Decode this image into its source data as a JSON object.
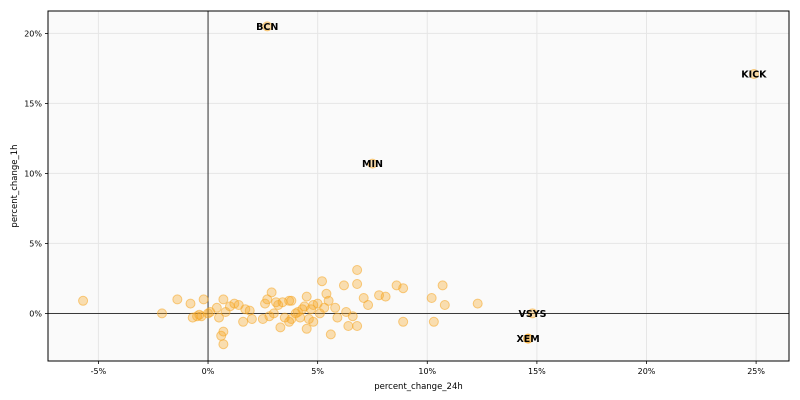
{
  "chart_data": {
    "type": "scatter",
    "xlabel": "percent_change_24h",
    "ylabel": "percent_change_1h",
    "xlim": [
      -7.3,
      26.5
    ],
    "ylim": [
      -3.4,
      21.6
    ],
    "x_ticks": [
      -5,
      0,
      5,
      10,
      15,
      20,
      25
    ],
    "x_tick_labels": [
      "-5%",
      "0%",
      "5%",
      "10%",
      "15%",
      "20%",
      "25%"
    ],
    "y_ticks": [
      0,
      5,
      10,
      15,
      20
    ],
    "y_tick_labels": [
      "0%",
      "5%",
      "10%",
      "15%",
      "20%"
    ],
    "grid": true,
    "zero_lines": true,
    "point_color": "#f5a623",
    "background": "#fafafa",
    "annotations": [
      {
        "label": "BCN",
        "x": 2.7,
        "y": 20.5
      },
      {
        "label": "KICK",
        "x": 24.9,
        "y": 17.1
      },
      {
        "label": "MIN",
        "x": 7.5,
        "y": 10.7
      },
      {
        "label": "VSYS",
        "x": 14.8,
        "y": 0.0
      },
      {
        "label": "XEM",
        "x": 14.6,
        "y": -1.8
      }
    ],
    "points": [
      {
        "x": -5.7,
        "y": 0.9
      },
      {
        "x": -2.1,
        "y": 0.0
      },
      {
        "x": -1.4,
        "y": 1.0
      },
      {
        "x": -0.8,
        "y": 0.7
      },
      {
        "x": -0.7,
        "y": -0.3
      },
      {
        "x": -0.5,
        "y": -0.2
      },
      {
        "x": -0.4,
        "y": -0.1
      },
      {
        "x": -0.3,
        "y": -0.2
      },
      {
        "x": -0.2,
        "y": 1.0
      },
      {
        "x": 0.0,
        "y": 0.0
      },
      {
        "x": 0.1,
        "y": 0.1
      },
      {
        "x": 0.4,
        "y": 0.4
      },
      {
        "x": 0.5,
        "y": -0.3
      },
      {
        "x": 0.6,
        "y": -1.6
      },
      {
        "x": 0.7,
        "y": 1.0
      },
      {
        "x": 0.7,
        "y": -2.2
      },
      {
        "x": 0.7,
        "y": -1.3
      },
      {
        "x": 0.8,
        "y": 0.1
      },
      {
        "x": 1.0,
        "y": 0.5
      },
      {
        "x": 1.2,
        "y": 0.7
      },
      {
        "x": 1.4,
        "y": 0.6
      },
      {
        "x": 1.6,
        "y": -0.6
      },
      {
        "x": 1.7,
        "y": 0.3
      },
      {
        "x": 1.9,
        "y": 0.2
      },
      {
        "x": 2.0,
        "y": -0.4
      },
      {
        "x": 2.5,
        "y": -0.4
      },
      {
        "x": 2.6,
        "y": 0.7
      },
      {
        "x": 2.7,
        "y": 1.0
      },
      {
        "x": 2.8,
        "y": -0.2
      },
      {
        "x": 2.9,
        "y": 1.5
      },
      {
        "x": 3.0,
        "y": 0.0
      },
      {
        "x": 3.1,
        "y": 0.8
      },
      {
        "x": 3.2,
        "y": 0.6
      },
      {
        "x": 3.3,
        "y": -1.0
      },
      {
        "x": 3.4,
        "y": 0.8
      },
      {
        "x": 3.5,
        "y": -0.3
      },
      {
        "x": 3.7,
        "y": 0.9
      },
      {
        "x": 3.7,
        "y": -0.6
      },
      {
        "x": 3.8,
        "y": 0.9
      },
      {
        "x": 3.8,
        "y": -0.4
      },
      {
        "x": 4.0,
        "y": 0.0
      },
      {
        "x": 4.1,
        "y": 0.1
      },
      {
        "x": 4.2,
        "y": -0.3
      },
      {
        "x": 4.3,
        "y": 0.3
      },
      {
        "x": 4.4,
        "y": 0.5
      },
      {
        "x": 4.5,
        "y": -1.1
      },
      {
        "x": 4.5,
        "y": 1.2
      },
      {
        "x": 4.6,
        "y": -0.4
      },
      {
        "x": 4.7,
        "y": 0.3
      },
      {
        "x": 4.8,
        "y": 0.6
      },
      {
        "x": 4.8,
        "y": -0.6
      },
      {
        "x": 5.0,
        "y": 0.7
      },
      {
        "x": 5.1,
        "y": 0.0
      },
      {
        "x": 5.2,
        "y": 2.3
      },
      {
        "x": 5.3,
        "y": 0.4
      },
      {
        "x": 5.4,
        "y": 1.4
      },
      {
        "x": 5.5,
        "y": 0.9
      },
      {
        "x": 5.6,
        "y": -1.5
      },
      {
        "x": 5.8,
        "y": 0.4
      },
      {
        "x": 5.9,
        "y": -0.3
      },
      {
        "x": 6.2,
        "y": 2.0
      },
      {
        "x": 6.3,
        "y": 0.1
      },
      {
        "x": 6.4,
        "y": -0.9
      },
      {
        "x": 6.6,
        "y": -0.2
      },
      {
        "x": 6.8,
        "y": 3.1
      },
      {
        "x": 6.8,
        "y": 2.1
      },
      {
        "x": 6.8,
        "y": -0.9
      },
      {
        "x": 7.1,
        "y": 1.1
      },
      {
        "x": 7.3,
        "y": 0.6
      },
      {
        "x": 7.8,
        "y": 1.3
      },
      {
        "x": 8.1,
        "y": 1.2
      },
      {
        "x": 8.6,
        "y": 2.0
      },
      {
        "x": 8.9,
        "y": 1.8
      },
      {
        "x": 8.9,
        "y": -0.6
      },
      {
        "x": 10.2,
        "y": 1.1
      },
      {
        "x": 10.3,
        "y": -0.6
      },
      {
        "x": 10.7,
        "y": 2.0
      },
      {
        "x": 10.8,
        "y": 0.6
      },
      {
        "x": 12.3,
        "y": 0.7
      },
      {
        "x": 14.6,
        "y": -1.8
      }
    ]
  }
}
